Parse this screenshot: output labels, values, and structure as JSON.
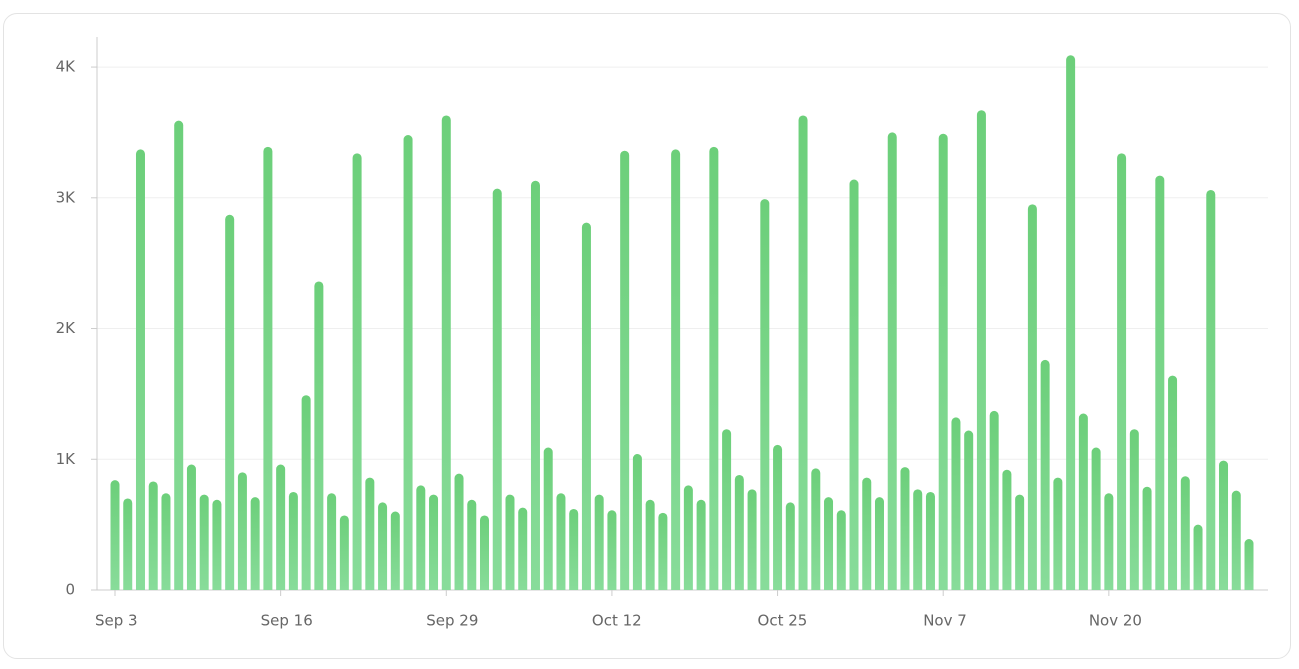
{
  "chart_data": {
    "type": "bar",
    "color": "#6dcf7b",
    "categories": [
      "Sep 3",
      null,
      null,
      null,
      null,
      null,
      null,
      null,
      null,
      null,
      null,
      null,
      null,
      "Sep 16",
      null,
      null,
      null,
      null,
      null,
      null,
      null,
      null,
      null,
      null,
      null,
      null,
      "Sep 29",
      null,
      null,
      null,
      null,
      null,
      null,
      null,
      null,
      null,
      null,
      null,
      null,
      "Oct 12",
      null,
      null,
      null,
      null,
      null,
      null,
      null,
      null,
      null,
      null,
      null,
      null,
      "Oct 25",
      null,
      null,
      null,
      null,
      null,
      null,
      null,
      null,
      null,
      null,
      null,
      null,
      "Nov 7",
      null,
      null,
      null,
      null,
      null,
      null,
      null,
      null,
      null,
      null,
      null,
      null,
      "Nov 20",
      null,
      null,
      null,
      null,
      null,
      null,
      null,
      null,
      null,
      null,
      null
    ],
    "values": [
      840,
      700,
      3370,
      830,
      740,
      3590,
      960,
      730,
      690,
      2870,
      900,
      710,
      3390,
      960,
      750,
      1490,
      2360,
      740,
      570,
      3340,
      860,
      670,
      600,
      3480,
      800,
      730,
      3630,
      890,
      690,
      570,
      3070,
      730,
      630,
      3130,
      1090,
      740,
      620,
      2810,
      730,
      610,
      3360,
      1040,
      690,
      590,
      3370,
      800,
      690,
      3390,
      1230,
      880,
      770,
      2990,
      1110,
      670,
      3630,
      930,
      710,
      610,
      3140,
      860,
      710,
      3500,
      940,
      770,
      750,
      3490,
      1320,
      1220,
      3670,
      1370,
      920,
      730,
      2950,
      1760,
      860,
      4090,
      1350,
      1090,
      740,
      3340,
      1230,
      790,
      3170,
      1640,
      870,
      500,
      3060,
      990,
      760,
      390
    ],
    "ylim": [
      0,
      4230
    ],
    "yticks": [
      0,
      {
        "value": 1000,
        "label": "1K"
      },
      {
        "value": 2000,
        "label": "2K"
      },
      {
        "value": 3000,
        "label": "3K"
      },
      {
        "value": 4000,
        "label": "4K"
      }
    ],
    "grid": true
  }
}
